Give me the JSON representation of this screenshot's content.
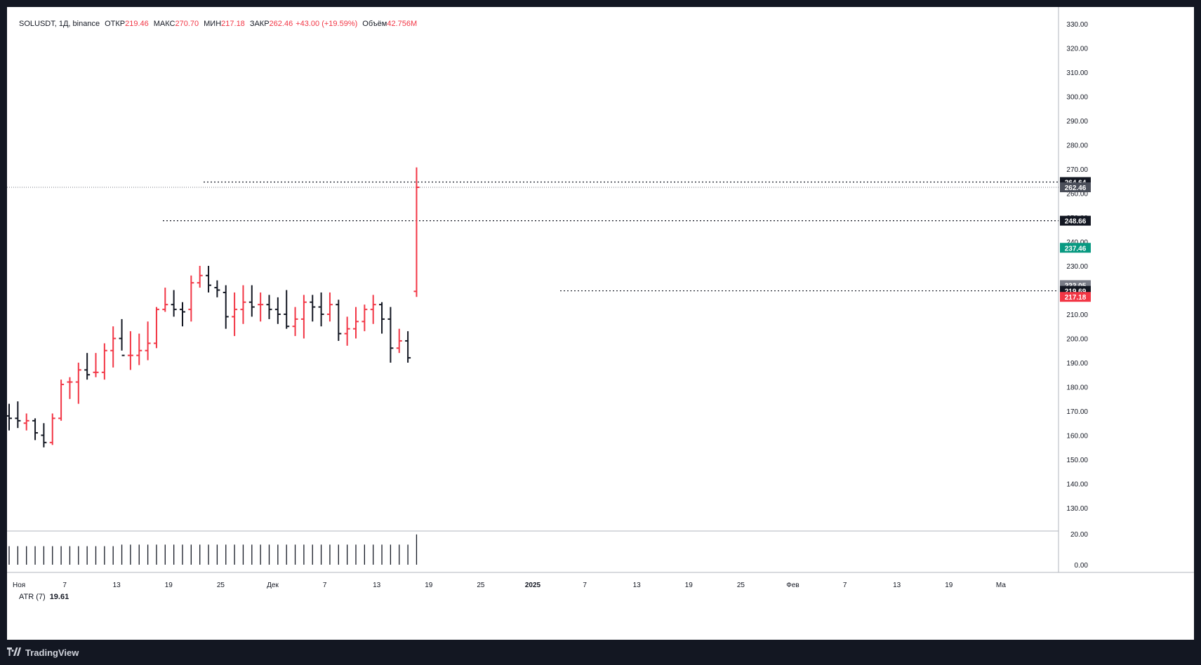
{
  "legend": {
    "symbol": "SOLUSDT, 1Д, binance",
    "open_label": "ОТКР",
    "open": "219.46",
    "high_label": "МАКС",
    "high": "270.70",
    "low_label": "МИН",
    "low": "217.18",
    "close_label": "ЗАКР",
    "close": "262.46",
    "change": "+43.00 (+19.59%)",
    "volume_label": "Объём",
    "volume": "42.756M"
  },
  "atr": {
    "label": "ATR (7)",
    "value": "19.61"
  },
  "footer": {
    "brand": "TradingView",
    "logo_icon": "tradingview-logo-icon"
  },
  "colors": {
    "up": "#f23645",
    "down": "#131722",
    "accent_green": "#089981",
    "grid_bg": "#ffffff"
  },
  "chart_data": {
    "type": "ohlc",
    "y_ticks": [
      "330.00",
      "320.00",
      "310.00",
      "300.00",
      "290.00",
      "280.00",
      "270.00",
      "260.00",
      "250.00",
      "240.00",
      "230.00",
      "220.00",
      "210.00",
      "200.00",
      "190.00",
      "180.00",
      "170.00",
      "160.00",
      "150.00",
      "140.00",
      "130.00"
    ],
    "atr_ticks": [
      "20.00",
      "0.00"
    ],
    "x_ticks": [
      "Ноя",
      "7",
      "13",
      "19",
      "25",
      "Дек",
      "7",
      "13",
      "19",
      "25",
      "2025",
      "7",
      "13",
      "19",
      "25",
      "Фев",
      "7",
      "13",
      "19",
      "Ма"
    ],
    "price_labels": [
      {
        "text": "264.64",
        "value": 264.64,
        "bg": "#131722"
      },
      {
        "text": "262.46",
        "value": 262.46,
        "bg": "#4a4e59"
      },
      {
        "text": "248.66",
        "value": 248.66,
        "bg": "#131722"
      },
      {
        "text": "237.46",
        "value": 237.46,
        "bg": "#089981"
      },
      {
        "text": "222.05",
        "value": 222.05,
        "bg": "#787b86"
      },
      {
        "text": "219.69",
        "value": 219.69,
        "bg": "#131722"
      },
      {
        "text": "217.18",
        "value": 217.18,
        "bg": "#f23645"
      }
    ],
    "levels": [
      264.64,
      248.66,
      219.69
    ],
    "last_close_line": 262.46,
    "bars": [
      {
        "o": 168,
        "h": 173,
        "l": 162,
        "c": 167
      },
      {
        "o": 167,
        "h": 174,
        "l": 163,
        "c": 166
      },
      {
        "o": 165,
        "h": 169,
        "l": 162,
        "c": 166
      },
      {
        "o": 166,
        "h": 167,
        "l": 158,
        "c": 161
      },
      {
        "o": 160,
        "h": 165,
        "l": 155,
        "c": 157
      },
      {
        "o": 157,
        "h": 169,
        "l": 156,
        "c": 167
      },
      {
        "o": 167,
        "h": 183,
        "l": 166,
        "c": 181
      },
      {
        "o": 182,
        "h": 184,
        "l": 175,
        "c": 182
      },
      {
        "o": 182,
        "h": 190,
        "l": 173,
        "c": 187
      },
      {
        "o": 187,
        "h": 194,
        "l": 183,
        "c": 185
      },
      {
        "o": 186,
        "h": 194,
        "l": 184,
        "c": 186
      },
      {
        "o": 186,
        "h": 198,
        "l": 183,
        "c": 195
      },
      {
        "o": 195,
        "h": 205,
        "l": 188,
        "c": 200
      },
      {
        "o": 200,
        "h": 208,
        "l": 195,
        "c": 193
      },
      {
        "o": 193,
        "h": 203,
        "l": 187,
        "c": 193
      },
      {
        "o": 193,
        "h": 202,
        "l": 189,
        "c": 195
      },
      {
        "o": 195,
        "h": 207,
        "l": 191,
        "c": 198
      },
      {
        "o": 198,
        "h": 213,
        "l": 196,
        "c": 212
      },
      {
        "o": 212,
        "h": 221,
        "l": 211,
        "c": 214
      },
      {
        "o": 214,
        "h": 220,
        "l": 209,
        "c": 212
      },
      {
        "o": 212,
        "h": 215,
        "l": 205,
        "c": 211
      },
      {
        "o": 212,
        "h": 226,
        "l": 207,
        "c": 223
      },
      {
        "o": 223,
        "h": 230,
        "l": 221,
        "c": 226
      },
      {
        "o": 226,
        "h": 230,
        "l": 219,
        "c": 222
      },
      {
        "o": 221,
        "h": 224,
        "l": 217,
        "c": 220
      },
      {
        "o": 219,
        "h": 222,
        "l": 204,
        "c": 209
      },
      {
        "o": 209,
        "h": 219,
        "l": 201,
        "c": 212
      },
      {
        "o": 212,
        "h": 222,
        "l": 206,
        "c": 215
      },
      {
        "o": 215,
        "h": 222,
        "l": 209,
        "c": 213
      },
      {
        "o": 214,
        "h": 219,
        "l": 207,
        "c": 214
      },
      {
        "o": 214,
        "h": 218,
        "l": 208,
        "c": 212
      },
      {
        "o": 212,
        "h": 217,
        "l": 206,
        "c": 210
      },
      {
        "o": 210,
        "h": 220,
        "l": 204,
        "c": 205
      },
      {
        "o": 205,
        "h": 213,
        "l": 201,
        "c": 208
      },
      {
        "o": 208,
        "h": 218,
        "l": 200,
        "c": 215
      },
      {
        "o": 215,
        "h": 218,
        "l": 207,
        "c": 213
      },
      {
        "o": 213,
        "h": 219,
        "l": 205,
        "c": 210
      },
      {
        "o": 210,
        "h": 219,
        "l": 207,
        "c": 214
      },
      {
        "o": 214,
        "h": 216,
        "l": 199,
        "c": 202
      },
      {
        "o": 202,
        "h": 209,
        "l": 197,
        "c": 204
      },
      {
        "o": 204,
        "h": 213,
        "l": 200,
        "c": 207
      },
      {
        "o": 207,
        "h": 214,
        "l": 203,
        "c": 212
      },
      {
        "o": 212,
        "h": 218,
        "l": 206,
        "c": 214
      },
      {
        "o": 214,
        "h": 215,
        "l": 202,
        "c": 208
      },
      {
        "o": 208,
        "h": 213,
        "l": 190,
        "c": 196
      },
      {
        "o": 196,
        "h": 204,
        "l": 194,
        "c": 199
      },
      {
        "o": 199,
        "h": 203,
        "l": 190,
        "c": 192
      }
    ],
    "atr_values": [
      12,
      12,
      12,
      12,
      12,
      12,
      12,
      12,
      12,
      12,
      12,
      12,
      12,
      13,
      13,
      13,
      13,
      13,
      13,
      13,
      13,
      13,
      13,
      13,
      13,
      13,
      13,
      13,
      13,
      13,
      13,
      13,
      13,
      13,
      13,
      13,
      13,
      13,
      13,
      13,
      13,
      13,
      13,
      13,
      13,
      13,
      13
    ]
  }
}
